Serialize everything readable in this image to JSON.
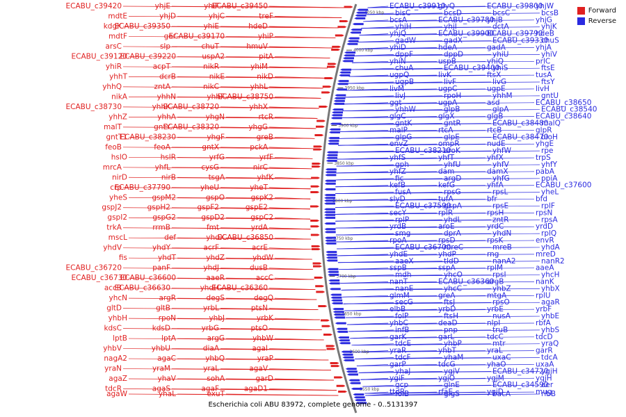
{
  "colors": {
    "forward": "#e02020",
    "reverse": "#2a2ae0",
    "axis": "#777777",
    "ticks": "#444444"
  },
  "legend": {
    "forward": "Forward",
    "reverse": "Reverse"
  },
  "caption": "Escherichia coli ABU 83972, complete genome - 0..5131397",
  "ticks": [
    "4050 kbp",
    "4000 kbp",
    "3950 kbp",
    "3900 kbp",
    "3850 kbp",
    "3800 kbp",
    "3750 kbp",
    "3700 kbp",
    "3650 kbp",
    "3600 kbp",
    "3550 kbp"
  ],
  "forward_labels": [
    "ECABU_c39420",
    "yhjE",
    "yhiF",
    "ECABU_c39450",
    "mdtE",
    "yhjD",
    "yhjC",
    "treF",
    "kdgK",
    "ECABU_c39350",
    "yhiE",
    "hdeD",
    "mdtF",
    "gor",
    "ECABU_c39170",
    "yhiP",
    "arsC",
    "slp",
    "chuT",
    "hmuV",
    "ECABU_c39120",
    "ECABU_c39220",
    "uspA2",
    "pitA",
    "yhiR",
    "acpT",
    "nikR",
    "yhiM",
    "yhhT",
    "dcrB",
    "nikE",
    "nikD",
    "yhhQ",
    "zntA",
    "nikC",
    "yhhL",
    "nikA",
    "yhhN",
    "yhhF",
    "ECABU_c38750",
    "ECABU_c38730",
    "yhhK",
    "ECABU_c38720",
    "yhhX",
    "yhhZ",
    "yhhA",
    "yhgN",
    "rtcR",
    "malT",
    "gntY",
    "ECABU_c38320",
    "yhgG",
    "gntT1",
    "ECABU_c38230",
    "yhgF",
    "greB",
    "feoB",
    "feoA",
    "gntX",
    "pckA",
    "hslO",
    "hslR",
    "yrfG",
    "yrfF",
    "mrcA",
    "yhfL",
    "cysG",
    "nirC",
    "nirD",
    "nirB",
    "tsgA",
    "yhfK",
    "crp",
    "ECABU_c37790",
    "yheU",
    "yheT",
    "yheS",
    "gspM2",
    "gspO",
    "gspK2",
    "gspJ2",
    "gspH2",
    "gspF2",
    "gspE2",
    "gspI2",
    "gspG2",
    "gspD2",
    "gspC2",
    "trkA",
    "rrmB",
    "fmt",
    "yrdA",
    "mscL",
    "def",
    "yhdX",
    "ECABU_c36850",
    "yhdV",
    "yhdY",
    "acrF",
    "acrE",
    "fis",
    "yhdT",
    "yhdZ",
    "yhdW",
    "ECABU_c36720",
    "panF",
    "yhdJ",
    "dusB",
    "ECABU_c36730",
    "ECABU_c36600",
    "aaeR",
    "accC",
    "accB",
    "ECABU_c36630",
    "yhdH",
    "ECABU_c36360",
    "yhcN",
    "argR",
    "degS",
    "degQ",
    "gltD",
    "gltB",
    "yrbL",
    "ptsN",
    "yhbH",
    "rpoN",
    "yhbJ",
    "yrbK",
    "kdsC",
    "kdsD",
    "yrbG",
    "ptsO",
    "lptB",
    "lptA",
    "argG",
    "yhbW",
    "yhbV",
    "yhbU",
    "diaA",
    "agaI",
    "nagA2",
    "agaC",
    "yhbQ",
    "yraP",
    "yraN",
    "yraM",
    "yraL",
    "agaV",
    "agaZ",
    "yhaV",
    "sohA",
    "garD",
    "tdcR",
    "agaS",
    "agaF",
    "agaD1",
    "agaW",
    "yhaL",
    "exuT"
  ],
  "reverse_labels": [
    "ECABU_c39910",
    "glyQ",
    "ECABU_c39800",
    "yhjW",
    "bisC",
    "bcsD",
    "bcsC",
    "bcsB",
    "bcsA",
    "ECABU_c39780",
    "yhjB",
    "yhjG",
    "yhjH",
    "yhjI",
    "dctA",
    "yhjK",
    "yhjQ",
    "ECABU_c39900",
    "ECABU_c39790",
    "hdeB",
    "gadW",
    "gadX",
    "ECABU_c39330",
    "chuS",
    "yhiD",
    "hdeA",
    "gadA",
    "yhjA",
    "dppF",
    "dppD",
    "yhiU",
    "yhiV",
    "yhiN",
    "uspB",
    "yhiQ",
    "prlC",
    "chuA",
    "ECABU_c39400",
    "yhiS",
    "ftsE",
    "ugpQ",
    "livK",
    "ftsX",
    "tusA",
    "ugpB",
    "livF",
    "livG",
    "ftsY",
    "livM",
    "ugpC",
    "ugpE",
    "livH",
    "livJ",
    "rpoH",
    "yhhM",
    "gntU",
    "ggt",
    "ugpA",
    "asd",
    "ECABU_c38650",
    "yhhW",
    "glpB",
    "glpA",
    "ECABU_c38540",
    "glgC",
    "glgX",
    "glgB",
    "ECABU_c38640",
    "gntK",
    "gntR",
    "ECABU_c38480",
    "malQ",
    "malP",
    "rtcA",
    "rtcB",
    "glpR",
    "glpG",
    "glpE",
    "ECABU_c38470",
    "bioH",
    "envZ",
    "ompR",
    "nudE",
    "yhgE",
    "ECABU_c38210",
    "aroK",
    "yhfW",
    "rpe",
    "yhfS",
    "yhfT",
    "yhfX",
    "trpS",
    "gph",
    "yhfU",
    "yhfV",
    "yhfY",
    "yhfZ",
    "dam",
    "damX",
    "pabA",
    "fic",
    "argD",
    "yhfG",
    "ppiA",
    "kefB",
    "kefG",
    "yhfA",
    "ECABU_c37600",
    "fusA",
    "rpsG",
    "rpsL",
    "yheL",
    "slyD",
    "tufA",
    "bfr",
    "bfd",
    "ECABU_c37590",
    "gspA",
    "rpsE",
    "rplF",
    "secY",
    "rplR",
    "rpsH",
    "rpsN",
    "rplP",
    "yhdL",
    "zntR",
    "rpsA",
    "yrdB",
    "aroE",
    "yrdC",
    "yrdD",
    "smg",
    "dprA",
    "yhdN",
    "rplQ",
    "rpoA",
    "rpsD",
    "rpsK",
    "envR",
    "ECABU_c36700",
    "mreC",
    "mreB",
    "yhdA",
    "yhdE",
    "yhdP",
    "rng",
    "mreD",
    "aaeX",
    "tldD",
    "nanA2",
    "nanR2",
    "sspB",
    "sspA",
    "rplM",
    "aaeA",
    "mdh",
    "yhcO",
    "rpsI",
    "yhcH",
    "nanT",
    "ECABU_c36360",
    "argB",
    "nanK",
    "nanE",
    "yhcC",
    "yhbZ",
    "yhbX",
    "glmM",
    "greA",
    "mtgA",
    "rplU",
    "secG",
    "ftsJ",
    "rpsO",
    "agaR",
    "elbB",
    "yrbD",
    "yrbE",
    "yrbF",
    "folP",
    "ftsH",
    "nusA",
    "yhbE",
    "yhbC",
    "deaD",
    "nlpI",
    "rbfA",
    "infB",
    "pnp",
    "truB",
    "yhbS",
    "garK",
    "garL",
    "tdcC",
    "tdcD",
    "tdcE",
    "yhbP",
    "mtr",
    "yraQ",
    "yraR",
    "yhbT",
    "yraL",
    "garR",
    "tdcF",
    "yhaM",
    "uxaC",
    "tdcA",
    "garP",
    "tdcG",
    "yhaO",
    "uxaA",
    "yhaJ",
    "ygjV",
    "ECABU_c34720",
    "ygjH",
    "ygiF",
    "ygjO",
    "ygjM",
    "yqjH",
    "gcp",
    "glnE",
    "ECABU_c34590",
    "aer",
    "ttdR",
    "rfaE",
    "ygiD",
    "mug",
    "folB",
    "glgS",
    "bacA",
    "ribB"
  ]
}
